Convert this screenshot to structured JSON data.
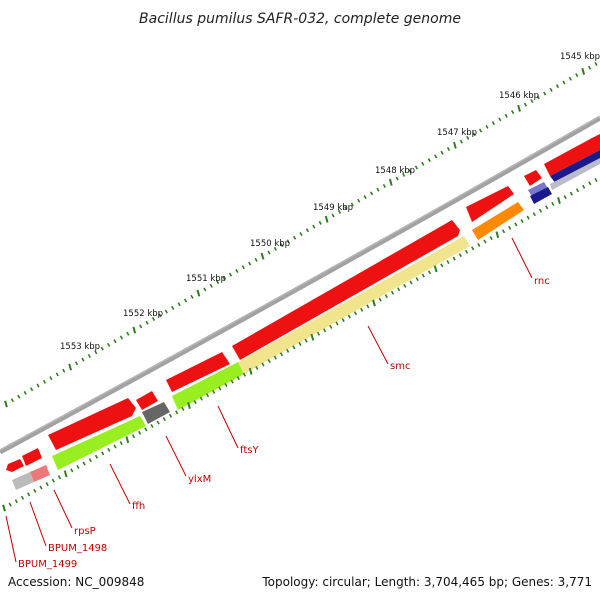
{
  "title": "Bacillus pumilus SAFR-032, complete genome",
  "footer": {
    "accession": "Accession: NC_009848",
    "topology": "Topology: circular; Length: 3,704,465 bp; Genes: 3,771"
  },
  "scale_labels": [
    {
      "text": "1545 kbp"
    },
    {
      "text": "1546 kbp"
    },
    {
      "text": "1547 kbp"
    },
    {
      "text": "1548 kbp"
    },
    {
      "text": "1549 kbp"
    },
    {
      "text": "1550 kbp"
    },
    {
      "text": "1551 kbp"
    },
    {
      "text": "1552 kbp"
    },
    {
      "text": "1553 kbp"
    }
  ],
  "gene_labels": [
    {
      "text": "rnc"
    },
    {
      "text": "smc"
    },
    {
      "text": "ftsY"
    },
    {
      "text": "ylxM"
    },
    {
      "text": "ffh"
    },
    {
      "text": "rpsP"
    },
    {
      "text": "BPUM_1498"
    },
    {
      "text": "BPUM_1499"
    }
  ],
  "colors": {
    "backbone": "#808080",
    "cds": "#ee1111",
    "gene_yellow": "#f0e48c",
    "gene_green": "#99ee22",
    "gene_grey": "#666666",
    "gene_orange": "#ff8a00",
    "gene_navy": "#1a1a8c",
    "gene_purple": "#7777cc",
    "gene_pink": "#ee7777",
    "ticks": "#2f7d1f",
    "label": "#c00000"
  }
}
